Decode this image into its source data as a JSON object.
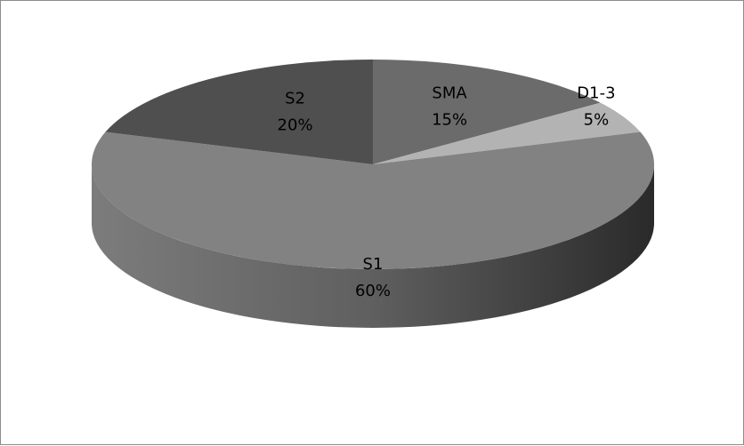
{
  "chart_data": {
    "type": "pie",
    "title": "",
    "legend": "none",
    "slices": [
      {
        "category": "SMA",
        "value": 15,
        "value_label": "15%",
        "color": "#6b6b6b"
      },
      {
        "category": "D1-3",
        "value": 5,
        "value_label": "5%",
        "color": "#b3b3b3"
      },
      {
        "category": "S1",
        "value": 60,
        "value_label": "60%",
        "color": "#828282"
      },
      {
        "category": "S2",
        "value": 20,
        "value_label": "20%",
        "color": "#4f4f4f"
      }
    ]
  }
}
